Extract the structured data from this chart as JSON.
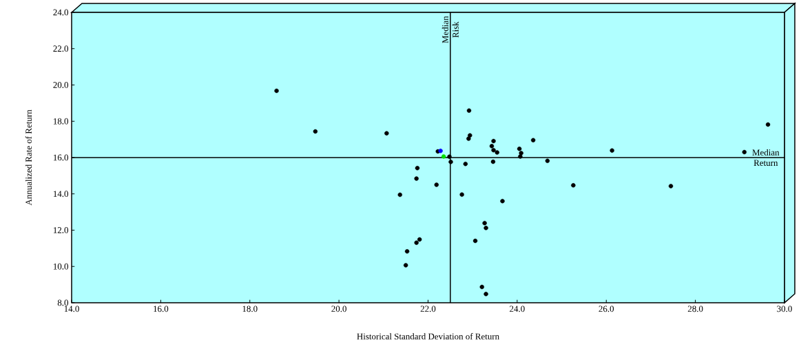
{
  "chart_data": {
    "type": "scatter",
    "xlabel": "Historical Standard Deviation of Return",
    "ylabel": "Annualized Rate of Return",
    "xlim": [
      14,
      30
    ],
    "ylim": [
      8,
      24
    ],
    "xticks": [
      {
        "value": 14,
        "label": "14.0"
      },
      {
        "value": 16,
        "label": "16.0"
      },
      {
        "value": 18,
        "label": "18.0"
      },
      {
        "value": 20,
        "label": "20.0"
      },
      {
        "value": 22,
        "label": "22.0"
      },
      {
        "value": 24,
        "label": "24.0"
      },
      {
        "value": 26,
        "label": "26.0"
      },
      {
        "value": 28,
        "label": "28.0"
      },
      {
        "value": 30,
        "label": "30.0"
      }
    ],
    "yticks": [
      {
        "value": 8,
        "label": "8.0"
      },
      {
        "value": 10,
        "label": "10.0"
      },
      {
        "value": 12,
        "label": "12.0"
      },
      {
        "value": 14,
        "label": "14.0"
      },
      {
        "value": 16,
        "label": "16.0"
      },
      {
        "value": 18,
        "label": "18.0"
      },
      {
        "value": 20,
        "label": "20.0"
      },
      {
        "value": 22,
        "label": "22.0"
      },
      {
        "value": 24,
        "label": "24.0"
      }
    ],
    "ref_lines": [
      {
        "axis": "x",
        "value": 22.5,
        "label": "Median Risk",
        "color": "#000000"
      },
      {
        "axis": "y",
        "value": 16.0,
        "label": "Median Return",
        "color": "#000000"
      }
    ],
    "series": [
      {
        "color": "#000000",
        "x": [
          21.07,
          22.92,
          22.94,
          22.91,
          23.47,
          23.43,
          23.47,
          23.55,
          24.05,
          24.09,
          24.07,
          24.36,
          24.68,
          25.26,
          22.22,
          22.48,
          22.51,
          22.84,
          23.46,
          21.76,
          21.74,
          22.19,
          21.37,
          22.76,
          23.67,
          23.27,
          23.3,
          23.06,
          21.81,
          21.74,
          21.53,
          21.5,
          23.21,
          23.3,
          18.6,
          19.47,
          26.13,
          27.45,
          29.63,
          29.1
        ],
        "values": [
          17.34,
          18.59,
          17.22,
          17.04,
          16.91,
          16.63,
          16.41,
          16.28,
          16.48,
          16.25,
          16.06,
          16.96,
          15.82,
          14.47,
          16.34,
          16.05,
          15.76,
          15.65,
          15.77,
          15.42,
          14.84,
          14.5,
          13.95,
          13.96,
          13.6,
          12.39,
          12.12,
          11.41,
          11.49,
          11.31,
          10.83,
          10.07,
          8.87,
          8.48,
          19.68,
          17.44,
          16.39,
          14.43,
          17.82,
          16.3
        ]
      },
      {
        "color": "#0000ff",
        "x": [
          22.28
        ],
        "values": [
          16.37
        ]
      },
      {
        "color": "#00e000",
        "x": [
          22.35
        ],
        "values": [
          16.06
        ]
      }
    ]
  }
}
